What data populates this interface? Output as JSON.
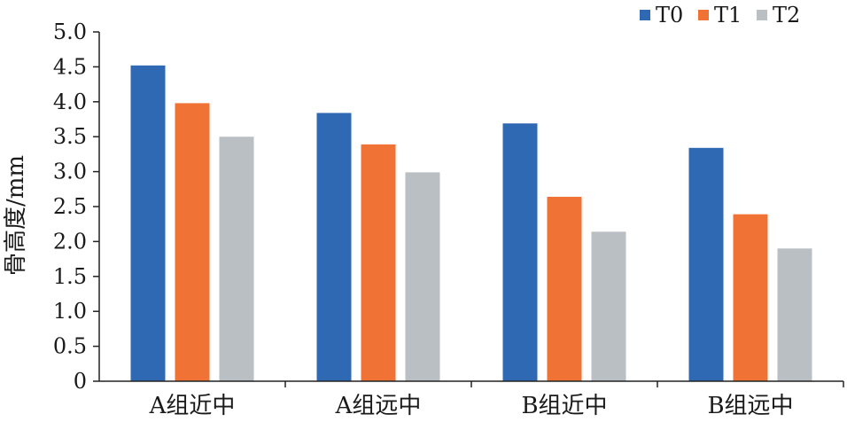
{
  "chart_data": {
    "type": "bar",
    "title": "",
    "xlabel": "",
    "ylabel": "骨高度/mm",
    "ylim": [
      0,
      5.0
    ],
    "yticks": [
      "0",
      "0.5",
      "1.0",
      "1.5",
      "2.0",
      "2.5",
      "3.0",
      "3.5",
      "4.0",
      "4.5",
      "5.0"
    ],
    "grid": false,
    "legend_position": "top-right",
    "categories": [
      "A组近中",
      "A组远中",
      "B组近中",
      "B组远中"
    ],
    "series": [
      {
        "name": "T0",
        "color": "#2f68b3",
        "values": [
          4.52,
          3.84,
          3.69,
          3.34
        ]
      },
      {
        "name": "T1",
        "color": "#f07335",
        "values": [
          3.98,
          3.39,
          2.64,
          2.39
        ]
      },
      {
        "name": "T2",
        "color": "#babfc4",
        "values": [
          3.5,
          2.99,
          2.14,
          1.9
        ]
      }
    ]
  }
}
